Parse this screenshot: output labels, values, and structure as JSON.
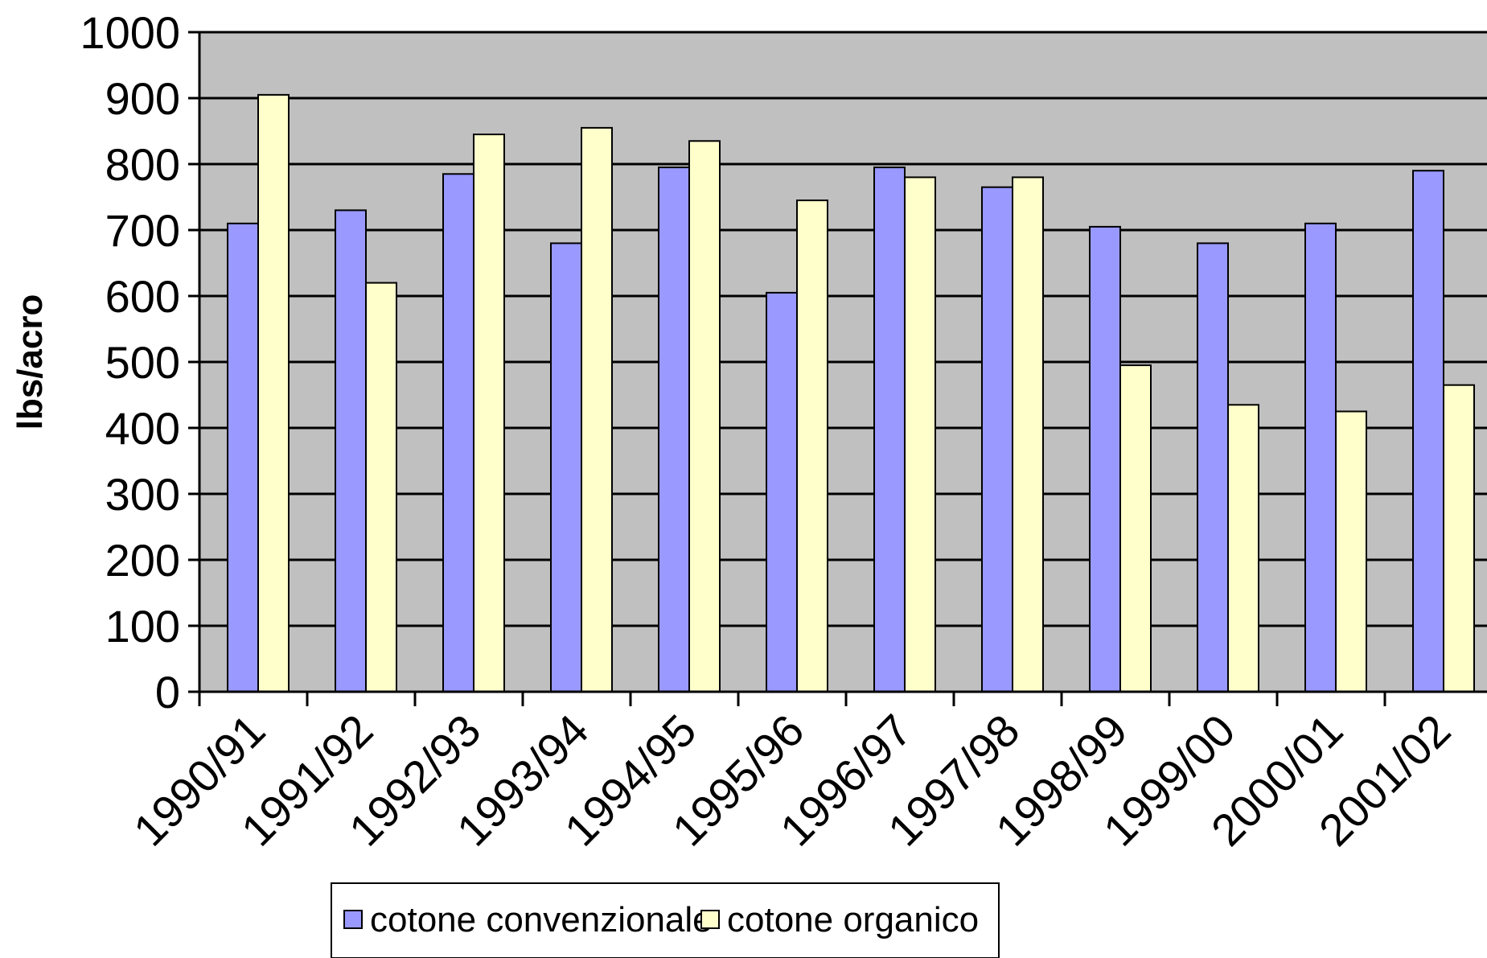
{
  "chart_data": {
    "type": "bar",
    "title": "",
    "xlabel": "",
    "ylabel": "lbs/acro",
    "ylim": [
      0,
      1000
    ],
    "yticks": [
      0,
      100,
      200,
      300,
      400,
      500,
      600,
      700,
      800,
      900,
      1000
    ],
    "grid": true,
    "legend_position": "bottom",
    "categories": [
      "1990/91",
      "1991/92",
      "1992/93",
      "1993/94",
      "1994/95",
      "1995/96",
      "1996/97",
      "1997/98",
      "1998/99",
      "1999/00",
      "2000/01",
      "2001/02"
    ],
    "series": [
      {
        "name": "cotone convenzionale",
        "color": "#9999ff",
        "values": [
          710,
          730,
          785,
          680,
          795,
          605,
          795,
          765,
          705,
          680,
          710,
          790
        ]
      },
      {
        "name": "cotone organico",
        "color": "#ffffcc",
        "values": [
          905,
          620,
          845,
          855,
          835,
          745,
          780,
          780,
          495,
          435,
          425,
          465
        ]
      }
    ],
    "plot_background": "#c0c0c0"
  }
}
